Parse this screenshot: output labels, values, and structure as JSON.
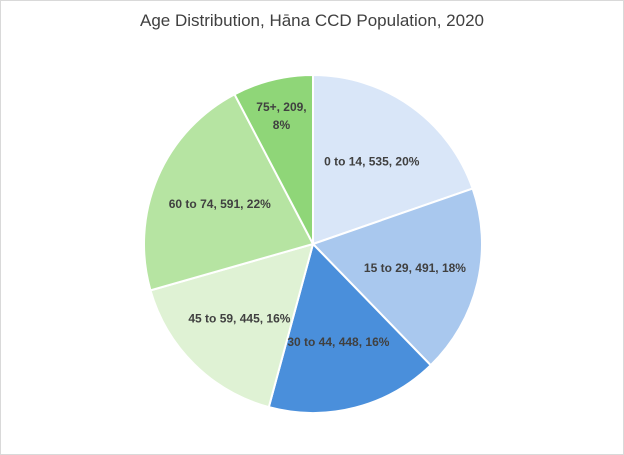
{
  "chart_data": {
    "type": "pie",
    "title": "Age Distribution, Hāna CCD Population, 2020",
    "categories": [
      "0 to 14",
      "15 to 29",
      "30 to 44",
      "45 to 59",
      "60 to 74",
      "75+"
    ],
    "values": [
      535,
      491,
      448,
      445,
      591,
      209
    ],
    "percent_labels": [
      "20%",
      "18%",
      "16%",
      "16%",
      "22%",
      "8%"
    ],
    "data_labels": [
      [
        "0 to 14, 535, 20%"
      ],
      [
        "15 to 29, 491, 18%"
      ],
      [
        "30 to 44, 448, 16%"
      ],
      [
        "45 to 59, 445, 16%"
      ],
      [
        "60 to 74, 591, 22%"
      ],
      [
        "75+, 209,",
        "8%"
      ]
    ],
    "colors": [
      "#d9e6f8",
      "#a9c8ee",
      "#4a8fdb",
      "#dff2d4",
      "#b6e4a2",
      "#8fd678"
    ],
    "start_angle_deg": 0,
    "direction": "clockwise",
    "legend": "none"
  }
}
